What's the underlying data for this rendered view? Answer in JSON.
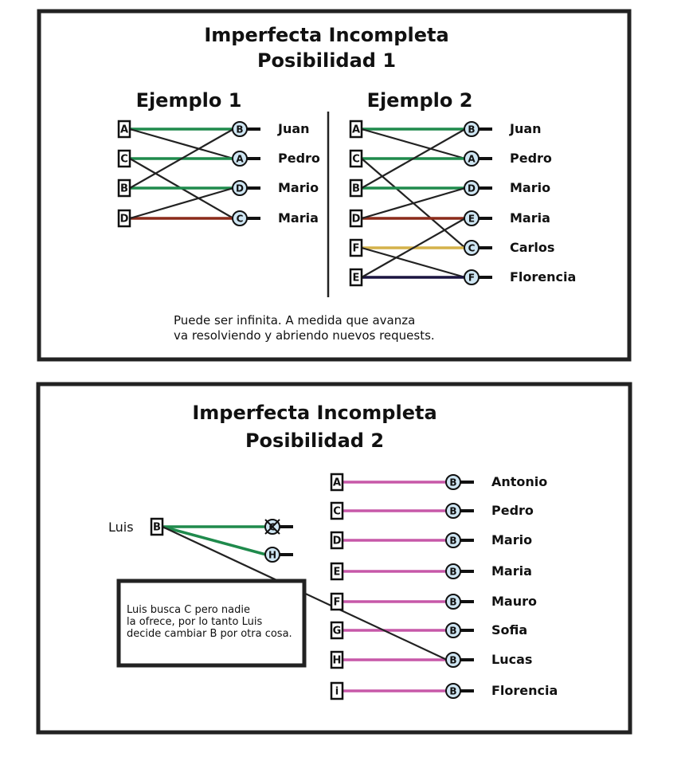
{
  "panel1": {
    "title": "Imperfecta Incompleta",
    "subtitle": "Posibilidad 1",
    "example1": {
      "heading": "Ejemplo 1",
      "left_boxes": [
        "A",
        "C",
        "B",
        "D"
      ],
      "right_circles": [
        "B",
        "A",
        "D",
        "C"
      ],
      "names": [
        "Juan",
        "Pedro",
        "Mario",
        "Maria"
      ],
      "links": [
        {
          "from": 0,
          "to": 0,
          "color": "#1f8a4c"
        },
        {
          "from": 0,
          "to": 1,
          "color": "#222222"
        },
        {
          "from": 1,
          "to": 1,
          "color": "#1f8a4c"
        },
        {
          "from": 1,
          "to": 3,
          "color": "#222222"
        },
        {
          "from": 2,
          "to": 2,
          "color": "#1f8a4c"
        },
        {
          "from": 2,
          "to": 0,
          "color": "#222222"
        },
        {
          "from": 3,
          "to": 3,
          "color": "#8b2b1a"
        },
        {
          "from": 3,
          "to": 2,
          "color": "#222222"
        }
      ]
    },
    "example2": {
      "heading": "Ejemplo 2",
      "left_boxes": [
        "A",
        "C",
        "B",
        "D",
        "F",
        "E"
      ],
      "right_circles": [
        "B",
        "A",
        "D",
        "E",
        "C",
        "F"
      ],
      "names": [
        "Juan",
        "Pedro",
        "Mario",
        "Maria",
        "Carlos",
        "Florencia"
      ],
      "links": [
        {
          "from": 0,
          "to": 0,
          "color": "#1f8a4c"
        },
        {
          "from": 0,
          "to": 1,
          "color": "#222222"
        },
        {
          "from": 1,
          "to": 1,
          "color": "#1f8a4c"
        },
        {
          "from": 1,
          "to": 4,
          "color": "#222222"
        },
        {
          "from": 2,
          "to": 2,
          "color": "#1f8a4c"
        },
        {
          "from": 2,
          "to": 0,
          "color": "#222222"
        },
        {
          "from": 3,
          "to": 3,
          "color": "#8b2b1a"
        },
        {
          "from": 3,
          "to": 2,
          "color": "#222222"
        },
        {
          "from": 4,
          "to": 4,
          "color": "#d4b24a"
        },
        {
          "from": 4,
          "to": 5,
          "color": "#222222"
        },
        {
          "from": 5,
          "to": 5,
          "color": "#1a1440"
        },
        {
          "from": 5,
          "to": 3,
          "color": "#222222"
        }
      ]
    },
    "note_line1": "Puede ser infinita. A medida que avanza",
    "note_line2": "va resolviendo y abriendo nuevos requests."
  },
  "panel2": {
    "title": "Imperfecta Incompleta",
    "subtitle": "Posibilidad 2",
    "luis_label": "Luis",
    "luis_box": "B",
    "luis_targets": [
      "C",
      "H"
    ],
    "left_boxes": [
      "A",
      "C",
      "D",
      "E",
      "F",
      "G",
      "H",
      "i"
    ],
    "right_circle": "B",
    "names": [
      "Antonio",
      "Pedro",
      "Mario",
      "Maria",
      "Mauro",
      "Sofia",
      "Lucas",
      "Florencia"
    ],
    "link_color": "#c758a8",
    "green_color": "#1f8a4c",
    "message_lines": [
      "Luis busca  C pero nadie",
      "la ofrece, por lo tanto Luis",
      "decide cambiar B por otra cosa."
    ]
  }
}
